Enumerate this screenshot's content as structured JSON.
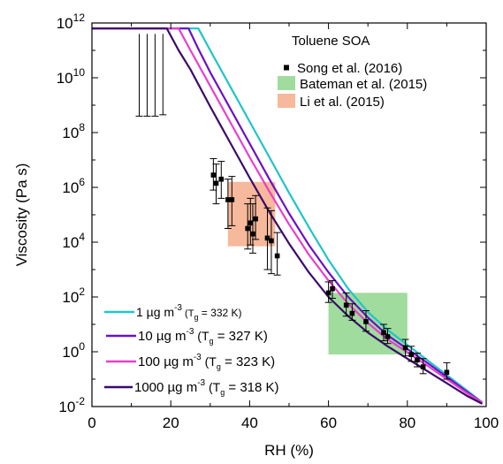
{
  "chart_data": {
    "type": "line",
    "title": "Toluene SOA",
    "xlabel": "RH (%)",
    "ylabel": "Viscosity (Pa s)",
    "xlim": [
      0,
      100
    ],
    "ylim_log10": [
      -2,
      12
    ],
    "y_scale": "log",
    "x_ticks": [
      0,
      20,
      40,
      60,
      80,
      100
    ],
    "x_tick_labels": [
      "0",
      "20",
      "40",
      "60",
      "80",
      "100"
    ],
    "y_tick_exponents": [
      -2,
      0,
      2,
      4,
      6,
      8,
      10,
      12
    ],
    "y_tick_base": "10",
    "grid": false,
    "series": [
      {
        "name": "1 µg m-3 (Tg = 332 K)",
        "color": "#20c4c8",
        "points": [
          [
            0,
            11.8
          ],
          [
            27,
            11.8
          ],
          [
            30,
            11.0
          ],
          [
            35,
            9.7
          ],
          [
            40,
            8.4
          ],
          [
            45,
            7.1
          ],
          [
            50,
            5.8
          ],
          [
            55,
            4.55
          ],
          [
            60,
            3.35
          ],
          [
            65,
            2.3
          ],
          [
            70,
            1.45
          ],
          [
            75,
            0.8
          ],
          [
            80,
            0.25
          ],
          [
            85,
            -0.3
          ],
          [
            90,
            -0.85
          ],
          [
            95,
            -1.4
          ],
          [
            99,
            -1.85
          ]
        ]
      },
      {
        "name": "10 µg m-3 (Tg = 327 K)",
        "color": "#6a10c8",
        "points": [
          [
            0,
            11.8
          ],
          [
            24.5,
            11.8
          ],
          [
            27,
            11.05
          ],
          [
            30,
            10.2
          ],
          [
            35,
            8.9
          ],
          [
            40,
            7.6
          ],
          [
            45,
            6.3
          ],
          [
            50,
            5.05
          ],
          [
            55,
            3.9
          ],
          [
            60,
            2.9
          ],
          [
            65,
            2.0
          ],
          [
            70,
            1.25
          ],
          [
            75,
            0.6
          ],
          [
            80,
            0.1
          ],
          [
            85,
            -0.4
          ],
          [
            90,
            -0.92
          ],
          [
            95,
            -1.45
          ],
          [
            99,
            -1.85
          ]
        ]
      },
      {
        "name": "100 µg m-3 (Tg = 323 K)",
        "color": "#e83fcc",
        "points": [
          [
            0,
            11.8
          ],
          [
            22,
            11.8
          ],
          [
            25,
            11.0
          ],
          [
            30,
            9.7
          ],
          [
            35,
            8.4
          ],
          [
            40,
            7.1
          ],
          [
            45,
            5.85
          ],
          [
            50,
            4.65
          ],
          [
            55,
            3.55
          ],
          [
            60,
            2.6
          ],
          [
            65,
            1.75
          ],
          [
            70,
            1.05
          ],
          [
            75,
            0.45
          ],
          [
            80,
            -0.02
          ],
          [
            85,
            -0.5
          ],
          [
            90,
            -1.0
          ],
          [
            95,
            -1.5
          ],
          [
            99,
            -1.85
          ]
        ]
      },
      {
        "name": "1000 µg m-3 (Tg = 318 K)",
        "color": "#3a0a6a",
        "points": [
          [
            0,
            11.8
          ],
          [
            19,
            11.8
          ],
          [
            22,
            11.0
          ],
          [
            25,
            10.3
          ],
          [
            30,
            8.95
          ],
          [
            35,
            7.65
          ],
          [
            40,
            6.35
          ],
          [
            45,
            5.1
          ],
          [
            50,
            3.95
          ],
          [
            55,
            2.9
          ],
          [
            60,
            2.0
          ],
          [
            65,
            1.3
          ],
          [
            70,
            0.7
          ],
          [
            75,
            0.2
          ],
          [
            80,
            -0.25
          ],
          [
            85,
            -0.7
          ],
          [
            90,
            -1.15
          ],
          [
            95,
            -1.6
          ],
          [
            99,
            -1.9
          ]
        ]
      }
    ],
    "song_2016": {
      "name": "Song et al. (2016)",
      "color": "#000000",
      "lower_bound_points": [
        {
          "x": 12,
          "y_top": 11.6,
          "y_bottom": 8.6
        },
        {
          "x": 14,
          "y_top": 11.6,
          "y_bottom": 8.6
        },
        {
          "x": 16,
          "y_top": 11.6,
          "y_bottom": 8.6
        },
        {
          "x": 18,
          "y_top": 11.6,
          "y_bottom": 8.65
        }
      ],
      "points": [
        {
          "x": 30.8,
          "y": 6.45,
          "lo": 5.9,
          "hi": 7.05
        },
        {
          "x": 31.5,
          "y": 6.15,
          "lo": 5.4,
          "hi": 6.85
        },
        {
          "x": 32.8,
          "y": 6.3,
          "lo": 5.6,
          "hi": 6.95
        },
        {
          "x": 34.5,
          "y": 5.55,
          "lo": 4.5,
          "hi": 6.3
        },
        {
          "x": 35.5,
          "y": 5.55,
          "lo": 4.6,
          "hi": 6.4
        },
        {
          "x": 39.5,
          "y": 4.5,
          "lo": 3.75,
          "hi": 5.4
        },
        {
          "x": 40.2,
          "y": 4.7,
          "lo": 3.9,
          "hi": 5.6
        },
        {
          "x": 40.8,
          "y": 4.3,
          "lo": 3.6,
          "hi": 5.4
        },
        {
          "x": 41.5,
          "y": 4.85,
          "lo": 4.1,
          "hi": 5.7
        },
        {
          "x": 44.5,
          "y": 4.15,
          "lo": 3.0,
          "hi": 5.25
        },
        {
          "x": 45.5,
          "y": 4.05,
          "lo": 2.85,
          "hi": 5.15
        },
        {
          "x": 47.0,
          "y": 3.5,
          "lo": 2.8,
          "hi": 4.35
        },
        {
          "x": 60.0,
          "y": 2.15,
          "lo": 1.8,
          "hi": 2.55
        },
        {
          "x": 61.0,
          "y": 2.3,
          "lo": 1.95,
          "hi": 2.6
        },
        {
          "x": 64.5,
          "y": 1.7,
          "lo": 1.3,
          "hi": 2.15
        },
        {
          "x": 66.0,
          "y": 1.4,
          "lo": 1.15,
          "hi": 1.75
        },
        {
          "x": 69.5,
          "y": 1.1,
          "lo": 0.75,
          "hi": 1.5
        },
        {
          "x": 74.0,
          "y": 0.7,
          "lo": 0.4,
          "hi": 1.0
        },
        {
          "x": 75.0,
          "y": 0.55,
          "lo": 0.3,
          "hi": 0.85
        },
        {
          "x": 79.5,
          "y": 0.15,
          "lo": -0.15,
          "hi": 0.45
        },
        {
          "x": 81.0,
          "y": -0.1,
          "lo": -0.35,
          "hi": 0.2
        },
        {
          "x": 82.5,
          "y": -0.3,
          "lo": -0.55,
          "hi": -0.05
        },
        {
          "x": 84.0,
          "y": -0.55,
          "lo": -0.8,
          "hi": -0.25
        },
        {
          "x": 90.0,
          "y": -0.75,
          "lo": -1.0,
          "hi": -0.4
        }
      ]
    },
    "regions": [
      {
        "name": "Bateman et al. (2015)",
        "color": "#8ed68c",
        "x": [
          60,
          80
        ],
        "y_log10": [
          -0.1,
          2.15
        ]
      },
      {
        "name": "Li et al. (2015)",
        "color": "#f6ad8a",
        "x": [
          34.5,
          46.5
        ],
        "y_log10": [
          3.85,
          6.2
        ]
      }
    ],
    "legend": {
      "title": "Toluene SOA",
      "placement": "top-right",
      "items": [
        "Song et al. (2016)",
        "Bateman et al. (2015)",
        "Li et al. (2015)"
      ]
    },
    "curve_legend": {
      "placement": "bottom-left",
      "items": [
        {
          "mass": "1 µg m",
          "exp": "-3",
          "tg_open": " (T",
          "tg_sub": "g",
          "tg_value": " = 332 K)",
          "color": "#20c4c8",
          "small": true
        },
        {
          "mass": "10 µg m",
          "exp": "-3",
          "tg_open": " (T",
          "tg_sub": "g",
          "tg_value": " = 327 K)",
          "color": "#6a10c8",
          "small": false
        },
        {
          "mass": "100 µg m",
          "exp": "-3",
          "tg_open": " (T",
          "tg_sub": "g",
          "tg_value": " = 323 K)",
          "color": "#e83fcc",
          "small": false
        },
        {
          "mass": "1000 µg m",
          "exp": "-3",
          "tg_open": " (T",
          "tg_sub": "g",
          "tg_value": " = 318 K)",
          "color": "#3a0a6a",
          "small": false
        }
      ]
    }
  }
}
